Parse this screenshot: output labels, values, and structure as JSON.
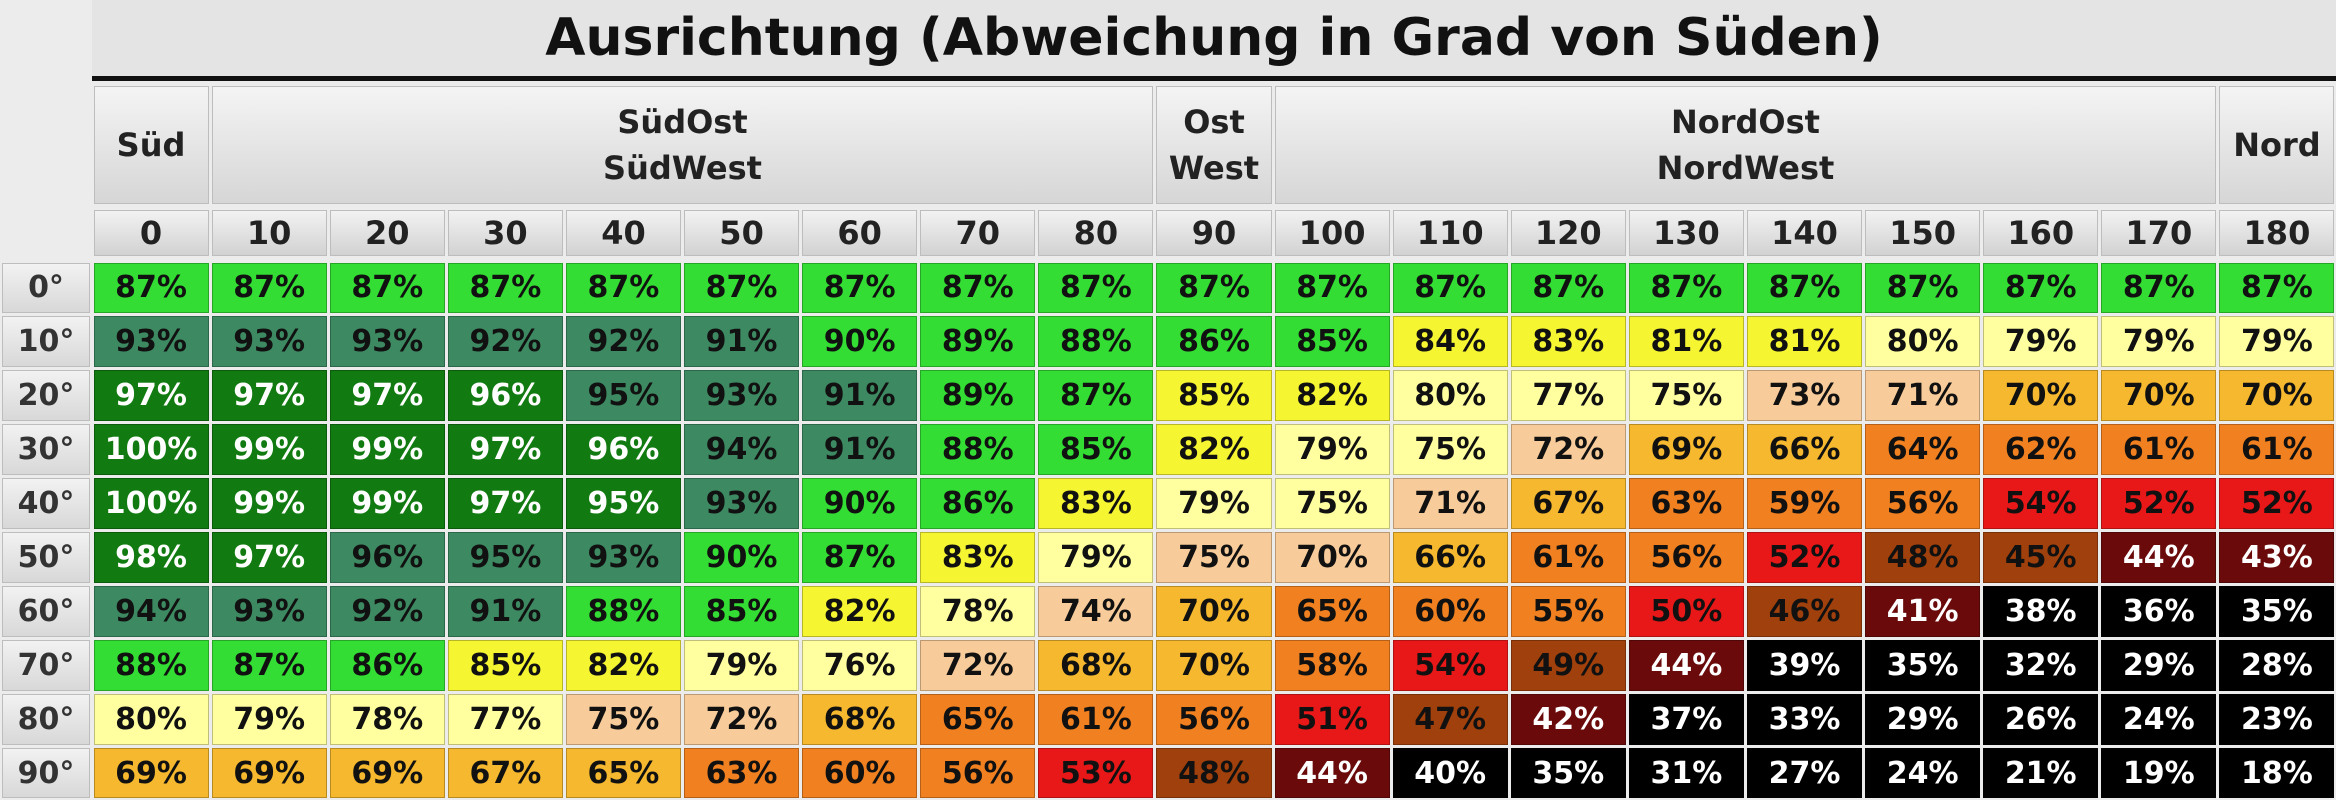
{
  "title": "Ausrichtung (Abweichung in Grad von Süden)",
  "groups": [
    {
      "lines": [
        "Süd"
      ],
      "columns": [
        "0"
      ]
    },
    {
      "lines": [
        "SüdOst",
        "SüdWest"
      ],
      "columns": [
        "10",
        "20",
        "30",
        "40",
        "50",
        "60",
        "70",
        "80"
      ]
    },
    {
      "lines": [
        "Ost",
        "West"
      ],
      "columns": [
        "90"
      ]
    },
    {
      "lines": [
        "NordOst",
        "NordWest"
      ],
      "columns": [
        "100",
        "110",
        "120",
        "130",
        "140",
        "150",
        "160",
        "170"
      ]
    },
    {
      "lines": [
        "Nord"
      ],
      "columns": [
        "180"
      ]
    }
  ],
  "rows": [
    {
      "label": "0°",
      "cells": [
        "87%",
        "87%",
        "87%",
        "87%",
        "87%",
        "87%",
        "87%",
        "87%",
        "87%",
        "87%",
        "87%",
        "87%",
        "87%",
        "87%",
        "87%",
        "87%",
        "87%",
        "87%",
        "87%"
      ],
      "colors": [
        "#33dd33",
        "#33dd33",
        "#33dd33",
        "#33dd33",
        "#33dd33",
        "#33dd33",
        "#33dd33",
        "#33dd33",
        "#33dd33",
        "#33dd33",
        "#33dd33",
        "#33dd33",
        "#33dd33",
        "#33dd33",
        "#33dd33",
        "#33dd33",
        "#33dd33",
        "#33dd33",
        "#33dd33"
      ]
    },
    {
      "label": "10°",
      "cells": [
        "93%",
        "93%",
        "93%",
        "92%",
        "92%",
        "91%",
        "90%",
        "89%",
        "88%",
        "86%",
        "85%",
        "84%",
        "83%",
        "81%",
        "81%",
        "80%",
        "79%",
        "79%",
        "79%"
      ],
      "colors": [
        "#3d8a62",
        "#3d8a62",
        "#3d8a62",
        "#3d8a62",
        "#3d8a62",
        "#3d8a62",
        "#33dd33",
        "#33dd33",
        "#33dd33",
        "#33dd33",
        "#33dd33",
        "#f5f532",
        "#f5f532",
        "#f5f532",
        "#f5f532",
        "#ffffa0",
        "#ffffa0",
        "#ffffa0",
        "#ffffa0"
      ]
    },
    {
      "label": "20°",
      "cells": [
        "97%",
        "97%",
        "97%",
        "96%",
        "95%",
        "93%",
        "91%",
        "89%",
        "87%",
        "85%",
        "82%",
        "80%",
        "77%",
        "75%",
        "73%",
        "71%",
        "70%",
        "70%",
        "70%"
      ],
      "colors": [
        "#117a11",
        "#117a11",
        "#117a11",
        "#117a11",
        "#3d8a62",
        "#3d8a62",
        "#3d8a62",
        "#33dd33",
        "#33dd33",
        "#f5f532",
        "#f5f532",
        "#ffffa0",
        "#ffffa0",
        "#ffffa0",
        "#f8cc9a",
        "#f8cc9a",
        "#f5b82e",
        "#f5b82e",
        "#f5b82e"
      ]
    },
    {
      "label": "30°",
      "cells": [
        "100%",
        "99%",
        "99%",
        "97%",
        "96%",
        "94%",
        "91%",
        "88%",
        "85%",
        "82%",
        "79%",
        "75%",
        "72%",
        "69%",
        "66%",
        "64%",
        "62%",
        "61%",
        "61%"
      ],
      "colors": [
        "#117a11",
        "#117a11",
        "#117a11",
        "#117a11",
        "#117a11",
        "#3d8a62",
        "#3d8a62",
        "#33dd33",
        "#33dd33",
        "#f5f532",
        "#ffffa0",
        "#ffffa0",
        "#f8cc9a",
        "#f5b82e",
        "#f5b82e",
        "#f08020",
        "#f08020",
        "#f08020",
        "#f08020"
      ]
    },
    {
      "label": "40°",
      "cells": [
        "100%",
        "99%",
        "99%",
        "97%",
        "95%",
        "93%",
        "90%",
        "86%",
        "83%",
        "79%",
        "75%",
        "71%",
        "67%",
        "63%",
        "59%",
        "56%",
        "54%",
        "52%",
        "52%"
      ],
      "colors": [
        "#117a11",
        "#117a11",
        "#117a11",
        "#117a11",
        "#117a11",
        "#3d8a62",
        "#33dd33",
        "#33dd33",
        "#f5f532",
        "#ffffa0",
        "#ffffa0",
        "#f8cc9a",
        "#f5b82e",
        "#f08020",
        "#f08020",
        "#f08020",
        "#e81818",
        "#e81818",
        "#e81818"
      ]
    },
    {
      "label": "50°",
      "cells": [
        "98%",
        "97%",
        "96%",
        "95%",
        "93%",
        "90%",
        "87%",
        "83%",
        "79%",
        "75%",
        "70%",
        "66%",
        "61%",
        "56%",
        "52%",
        "48%",
        "45%",
        "44%",
        "43%"
      ],
      "colors": [
        "#117a11",
        "#117a11",
        "#3d8a62",
        "#3d8a62",
        "#3d8a62",
        "#33dd33",
        "#33dd33",
        "#f5f532",
        "#ffffa0",
        "#f8cc9a",
        "#f8cc9a",
        "#f5b82e",
        "#f08020",
        "#f08020",
        "#e81818",
        "#a0400c",
        "#a0400c",
        "#6a0a0a",
        "#6a0a0a"
      ]
    },
    {
      "label": "60°",
      "cells": [
        "94%",
        "93%",
        "92%",
        "91%",
        "88%",
        "85%",
        "82%",
        "78%",
        "74%",
        "70%",
        "65%",
        "60%",
        "55%",
        "50%",
        "46%",
        "41%",
        "38%",
        "36%",
        "35%"
      ],
      "colors": [
        "#3d8a62",
        "#3d8a62",
        "#3d8a62",
        "#3d8a62",
        "#33dd33",
        "#33dd33",
        "#f5f532",
        "#ffffa0",
        "#f8cc9a",
        "#f5b82e",
        "#f08020",
        "#f08020",
        "#f08020",
        "#e81818",
        "#a0400c",
        "#6a0a0a",
        "#000000",
        "#000000",
        "#000000"
      ]
    },
    {
      "label": "70°",
      "cells": [
        "88%",
        "87%",
        "86%",
        "85%",
        "82%",
        "79%",
        "76%",
        "72%",
        "68%",
        "70%",
        "58%",
        "54%",
        "49%",
        "44%",
        "39%",
        "35%",
        "32%",
        "29%",
        "28%"
      ],
      "colors": [
        "#33dd33",
        "#33dd33",
        "#33dd33",
        "#f5f532",
        "#f5f532",
        "#ffffa0",
        "#ffffa0",
        "#f8cc9a",
        "#f5b82e",
        "#f5b82e",
        "#f08020",
        "#e81818",
        "#a0400c",
        "#6a0a0a",
        "#000000",
        "#000000",
        "#000000",
        "#000000",
        "#000000"
      ]
    },
    {
      "label": "80°",
      "cells": [
        "80%",
        "79%",
        "78%",
        "77%",
        "75%",
        "72%",
        "68%",
        "65%",
        "61%",
        "56%",
        "51%",
        "47%",
        "42%",
        "37%",
        "33%",
        "29%",
        "26%",
        "24%",
        "23%"
      ],
      "colors": [
        "#ffffa0",
        "#ffffa0",
        "#ffffa0",
        "#ffffa0",
        "#f8cc9a",
        "#f8cc9a",
        "#f5b82e",
        "#f08020",
        "#f08020",
        "#f08020",
        "#e81818",
        "#a0400c",
        "#6a0a0a",
        "#000000",
        "#000000",
        "#000000",
        "#000000",
        "#000000",
        "#000000"
      ]
    },
    {
      "label": "90°",
      "cells": [
        "69%",
        "69%",
        "69%",
        "67%",
        "65%",
        "63%",
        "60%",
        "56%",
        "53%",
        "48%",
        "44%",
        "40%",
        "35%",
        "31%",
        "27%",
        "24%",
        "21%",
        "19%",
        "18%"
      ],
      "colors": [
        "#f5b82e",
        "#f5b82e",
        "#f5b82e",
        "#f5b82e",
        "#f5b82e",
        "#f08020",
        "#f08020",
        "#f08020",
        "#e81818",
        "#a0400c",
        "#6a0a0a",
        "#000000",
        "#000000",
        "#000000",
        "#000000",
        "#000000",
        "#000000",
        "#000000",
        "#000000"
      ]
    }
  ]
}
